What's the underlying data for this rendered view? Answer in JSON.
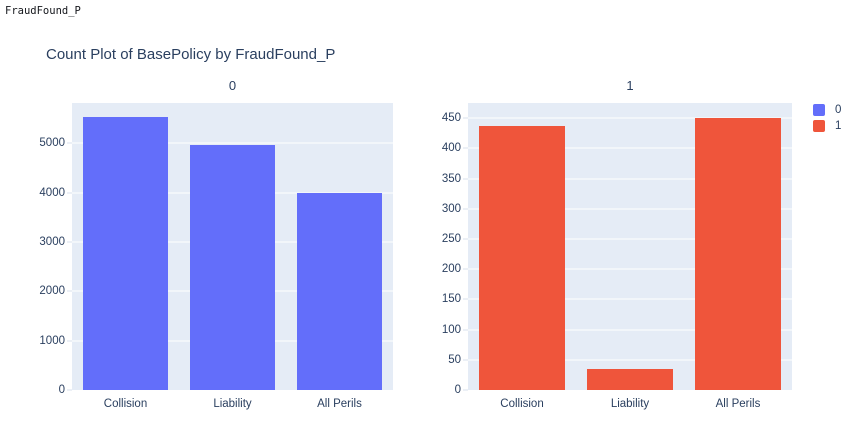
{
  "header": {
    "widget_label": "FraudFound_P"
  },
  "chart_data": {
    "type": "bar",
    "title": "Count Plot of BasePolicy by FraudFound_P",
    "xlabel": "",
    "ylabel": "",
    "categories": [
      "Collision",
      "Liability",
      "All Perils"
    ],
    "grid": true,
    "plot_bg": "#E5ECF6",
    "text_color": "#2A3F5F",
    "facets": [
      {
        "title": "0",
        "series_name": "0",
        "color": "#636EFA",
        "values": [
          5525,
          4971,
          4001
        ],
        "ylim": [
          0,
          5816
        ],
        "yticks": [
          0,
          1000,
          2000,
          3000,
          4000,
          5000
        ]
      },
      {
        "title": "1",
        "series_name": "1",
        "color": "#EF553B",
        "values": [
          437,
          35,
          451
        ],
        "ylim": [
          0,
          475
        ],
        "yticks": [
          0,
          50,
          100,
          150,
          200,
          250,
          300,
          350,
          400,
          450
        ]
      }
    ],
    "legend": {
      "position": "top-right",
      "entries": [
        {
          "label": "0",
          "color": "#636EFA"
        },
        {
          "label": "1",
          "color": "#EF553B"
        }
      ]
    }
  }
}
